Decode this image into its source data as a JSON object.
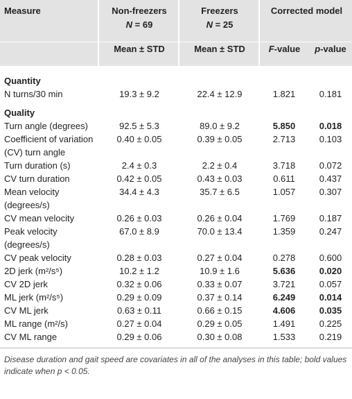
{
  "table": {
    "header": {
      "measure": "Measure",
      "groups": [
        {
          "name": "Non-freezers",
          "n_symbol": "N",
          "n_text": "= 69"
        },
        {
          "name": "Freezers",
          "n_symbol": "N",
          "n_text": "= 25"
        },
        {
          "name": "Corrected model"
        }
      ],
      "subheaders": [
        {
          "text": "Mean ± STD"
        },
        {
          "text": "Mean ± STD"
        },
        {
          "symbol": "F",
          "text": "-value"
        },
        {
          "symbol": "p",
          "text": "-value"
        }
      ]
    },
    "sections": [
      {
        "title": "Quantity",
        "rows": [
          {
            "cells": [
              "N turns/30 min",
              "19.3 ± 9.2",
              "22.4 ± 12.9",
              "1.821",
              "0.181"
            ],
            "bold": false
          }
        ]
      },
      {
        "title": "Quality",
        "rows": [
          {
            "cells": [
              "Turn angle (degrees)",
              "92.5 ± 5.3",
              "89.0 ± 9.2",
              "5.850",
              "0.018"
            ],
            "bold": true
          },
          {
            "cells": [
              "Coefficient of variation (CV) turn angle",
              "0.40 ± 0.05",
              "0.39 ± 0.05",
              "2.713",
              "0.103"
            ],
            "bold": false
          },
          {
            "cells": [
              "Turn duration (s)",
              "2.4 ± 0.3",
              "2.2 ± 0.4",
              "3.718",
              "0.072"
            ],
            "bold": false
          },
          {
            "cells": [
              "CV turn duration",
              "0.42 ± 0.05",
              "0.43 ± 0.03",
              "0.611",
              "0.437"
            ],
            "bold": false
          },
          {
            "cells": [
              "Mean velocity (degrees/s)",
              "34.4 ± 4.3",
              "35.7 ± 6.5",
              "1.057",
              "0.307"
            ],
            "bold": false
          },
          {
            "cells": [
              "CV mean velocity",
              "0.26 ± 0.03",
              "0.26 ± 0.04",
              "1.769",
              "0.187"
            ],
            "bold": false
          },
          {
            "cells": [
              "Peak velocity (degrees/s)",
              "67.0 ± 8.9",
              "70.0 ± 13.4",
              "1.359",
              "0.247"
            ],
            "bold": false
          },
          {
            "cells": [
              "CV peak velocity",
              "0.28 ± 0.03",
              "0.27 ± 0.04",
              "0.278",
              "0.600"
            ],
            "bold": false
          },
          {
            "cells": [
              "2D jerk (m²/s⁵)",
              "10.2 ± 1.2",
              "10.9 ± 1.6",
              "5.636",
              "0.020"
            ],
            "bold": true
          },
          {
            "cells": [
              "CV 2D jerk",
              "0.32 ± 0.06",
              "0.33 ± 0.07",
              "3.721",
              "0.057"
            ],
            "bold": false
          },
          {
            "cells": [
              "ML jerk (m²/s⁵)",
              "0.29 ± 0.09",
              "0.37 ± 0.14",
              "6.249",
              "0.014"
            ],
            "bold": true
          },
          {
            "cells": [
              "CV ML jerk",
              "0.63 ± 0.11",
              "0.66 ± 0.15",
              "4.606",
              "0.035"
            ],
            "bold": true
          },
          {
            "cells": [
              "ML range (m²/s)",
              "0.27 ± 0.04",
              "0.29 ± 0.05",
              "1.491",
              "0.225"
            ],
            "bold": false
          },
          {
            "cells": [
              "CV ML range",
              "0.29 ± 0.06",
              "0.30 ± 0.08",
              "1.533",
              "0.219"
            ],
            "bold": false
          }
        ]
      }
    ],
    "footnote": "Disease duration and gait speed are covariates in all of the analyses in this table; bold values indicate when p < 0.05."
  }
}
